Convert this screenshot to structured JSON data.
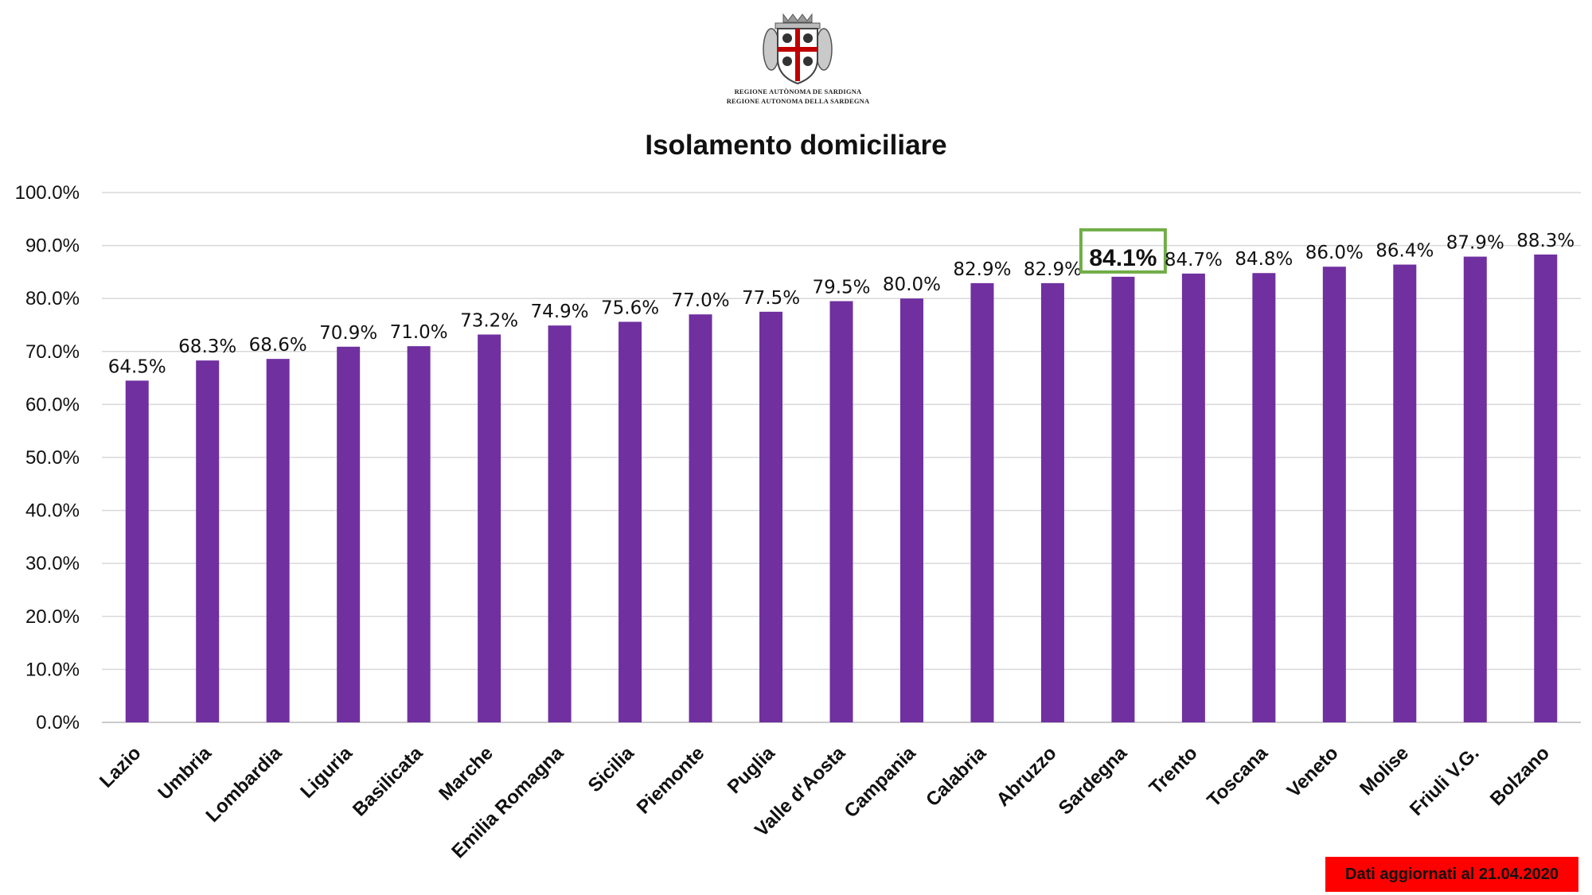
{
  "header": {
    "logo_line1": "REGIONE AUTÒNOMA DE SARDIGNA",
    "logo_line2": "REGIONE AUTONOMA DELLA SARDEGNA"
  },
  "footer": {
    "note": "Dati aggiornati al 21.04.2020"
  },
  "colors": {
    "bar": "#7030A0",
    "highlight_box": "#70AD47",
    "footer_bg": "#FF0000",
    "grid": "#D9D9D9"
  },
  "chart_data": {
    "type": "bar",
    "title": "Isolamento domiciliare",
    "categories": [
      "Lazio",
      "Umbria",
      "Lombardia",
      "Liguria",
      "Basilicata",
      "Marche",
      "Emilia Romagna",
      "Sicilia",
      "Piemonte",
      "Puglia",
      "Valle d'Aosta",
      "Campania",
      "Calabria",
      "Abruzzo",
      "Sardegna",
      "Trento",
      "Toscana",
      "Veneto",
      "Molise",
      "Friuli V.G.",
      "Bolzano"
    ],
    "values": [
      64.5,
      68.3,
      68.6,
      70.9,
      71.0,
      73.2,
      74.9,
      75.6,
      77.0,
      77.5,
      79.5,
      80.0,
      82.9,
      82.9,
      84.1,
      84.7,
      84.8,
      86.0,
      86.4,
      87.9,
      88.3
    ],
    "data_labels": [
      "64.5%",
      "68.3%",
      "68.6%",
      "70.9%",
      "71.0%",
      "73.2%",
      "74.9%",
      "75.6%",
      "77.0%",
      "77.5%",
      "79.5%",
      "80.0%",
      "82.9%",
      "82.9%",
      "84.1%",
      "84.7%",
      "84.8%",
      "86.0%",
      "86.4%",
      "87.9%",
      "88.3%"
    ],
    "highlight": "Sardegna",
    "ylim": [
      0,
      100
    ],
    "yticks": [
      "0.0%",
      "10.0%",
      "20.0%",
      "30.0%",
      "40.0%",
      "50.0%",
      "60.0%",
      "70.0%",
      "80.0%",
      "90.0%",
      "100.0%"
    ],
    "grid": true,
    "xlabel": "",
    "ylabel": ""
  }
}
